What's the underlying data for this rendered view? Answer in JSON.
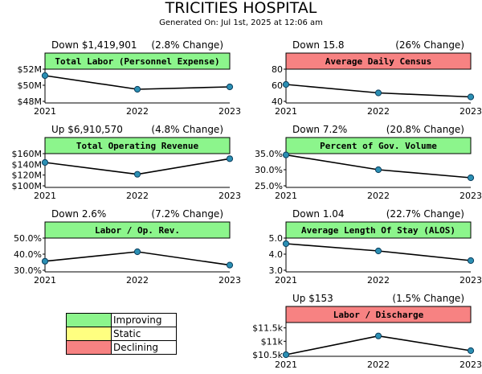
{
  "header": {
    "title": "TRICITIES HOSPITAL",
    "generated": "Generated On: Jul 1st, 2025 at 12:06 am"
  },
  "colors": {
    "improving": "#8cf58c",
    "static": "#ffff80",
    "declining": "#f78282"
  },
  "legend": [
    {
      "label": "Improving",
      "color": "#8cf58c"
    },
    {
      "label": "Static",
      "color": "#ffff80"
    },
    {
      "label": "Declining",
      "color": "#f78282"
    }
  ],
  "chart_data": [
    {
      "type": "line",
      "title": "Total Labor (Personnel Expense)",
      "status": "improving",
      "change_text": "Down $1,419,901",
      "pct_text": "(2.8% Change)",
      "categories": [
        "2021",
        "2022",
        "2023"
      ],
      "values": [
        51.2,
        49.5,
        49.8
      ],
      "ylim": [
        48,
        52
      ],
      "yticks": [
        48,
        50,
        52
      ],
      "ytick_labels": [
        "$48M",
        "$50M",
        "$52M"
      ]
    },
    {
      "type": "line",
      "title": "Average Daily Census",
      "status": "declining",
      "change_text": "Down 15.8",
      "pct_text": "(26% Change)",
      "categories": [
        "2021",
        "2022",
        "2023"
      ],
      "values": [
        61,
        50.5,
        45.5
      ],
      "ylim": [
        40,
        80
      ],
      "yticks": [
        40,
        60,
        80
      ],
      "ytick_labels": [
        "40",
        "60",
        "80"
      ]
    },
    {
      "type": "line",
      "title": "Total Operating Revenue",
      "status": "improving",
      "change_text": "Up $6,910,570",
      "pct_text": "(4.8% Change)",
      "categories": [
        "2021",
        "2022",
        "2023"
      ],
      "values": [
        143.5,
        121.5,
        150.5
      ],
      "ylim": [
        100,
        160
      ],
      "yticks": [
        100,
        120,
        140,
        160
      ],
      "ytick_labels": [
        "$100M",
        "$120M",
        "$140M",
        "$160M"
      ]
    },
    {
      "type": "line",
      "title": "Percent of Gov. Volume",
      "status": "improving",
      "change_text": "Down 7.2%",
      "pct_text": "(20.8% Change)",
      "categories": [
        "2021",
        "2022",
        "2023"
      ],
      "values": [
        34.6,
        30,
        27.5
      ],
      "ylim": [
        25,
        35
      ],
      "yticks": [
        25,
        30,
        35
      ],
      "ytick_labels": [
        "25.0%",
        "30.0%",
        "35.0%"
      ]
    },
    {
      "type": "line",
      "title": "Labor / Op. Rev.",
      "status": "improving",
      "change_text": "Down 2.6%",
      "pct_text": "(7.2% Change)",
      "categories": [
        "2021",
        "2022",
        "2023"
      ],
      "values": [
        35.6,
        41.5,
        33.2
      ],
      "ylim": [
        30,
        50
      ],
      "yticks": [
        30,
        40,
        50
      ],
      "ytick_labels": [
        "30.0%",
        "40.0%",
        "50.0%"
      ]
    },
    {
      "type": "line",
      "title": "Average Length Of Stay (ALOS)",
      "status": "improving",
      "change_text": "Down 1.04",
      "pct_text": "(22.7% Change)",
      "categories": [
        "2021",
        "2022",
        "2023"
      ],
      "values": [
        4.65,
        4.2,
        3.6
      ],
      "ylim": [
        3,
        5
      ],
      "yticks": [
        3,
        4,
        5
      ],
      "ytick_labels": [
        "3.0",
        "4.0",
        "5.0"
      ]
    },
    {
      "type": "line",
      "title": "Labor / Discharge",
      "status": "declining",
      "change_text": "Up $153",
      "pct_text": "(1.5% Change)",
      "categories": [
        "2021",
        "2022",
        "2023"
      ],
      "values": [
        10500,
        11200,
        10650
      ],
      "ylim": [
        10500,
        11700
      ],
      "yticks": [
        10500,
        11000,
        11500
      ],
      "ytick_labels": [
        "$10.5k",
        "$11k",
        "$11.5k"
      ]
    }
  ]
}
